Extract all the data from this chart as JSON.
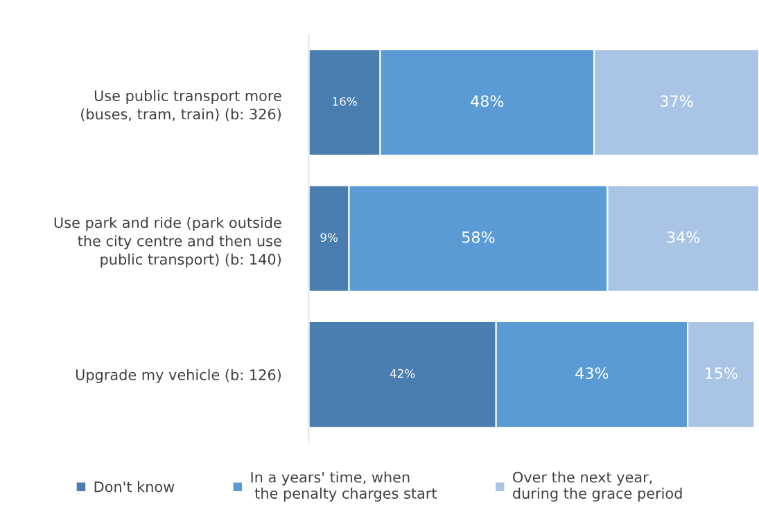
{
  "chart_data": {
    "type": "bar",
    "orientation": "horizontal",
    "stacked": true,
    "legend": "bottom",
    "grid": false,
    "categories": [
      "Use public transport more\n(buses, tram, train) (b: 326)",
      "Use park and ride (park outside\nthe city centre and then use\npublic transport) (b: 140)",
      "Upgrade my vehicle (b: 126)"
    ],
    "series": [
      {
        "name": "Don't know",
        "color": "#4a7eb0",
        "values": [
          16,
          9,
          42
        ],
        "value_labels": [
          "16%",
          "9%",
          "42%"
        ]
      },
      {
        "name": "In a years' time, when\n the penalty charges start",
        "color": "#5b9bd5",
        "values": [
          48,
          58,
          43
        ],
        "value_labels": [
          "48%",
          "58%",
          "43%"
        ]
      },
      {
        "name": "Over the next year,\nduring the grace period",
        "color": "#a9c4e5",
        "values": [
          37,
          34,
          15
        ],
        "value_labels": [
          "37%",
          "34%",
          "15%"
        ]
      }
    ]
  }
}
